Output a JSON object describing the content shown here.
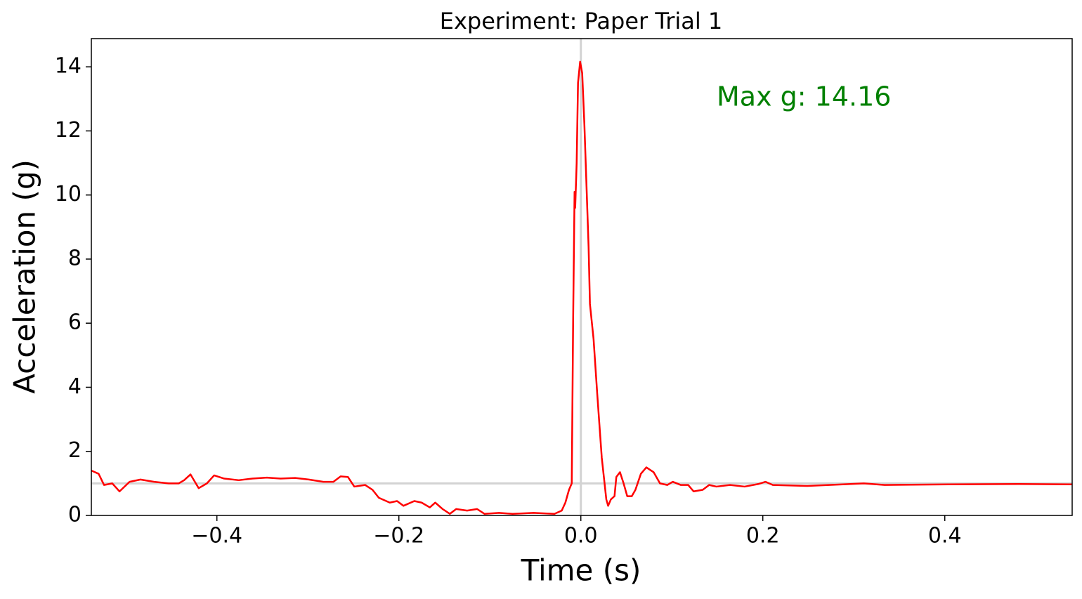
{
  "chart_data": {
    "type": "line",
    "title": "Experiment: Paper Trial 1",
    "xlabel": "Time (s)",
    "ylabel": "Acceleration (g)",
    "annotation": {
      "text": "Max g: 14.16",
      "color": "#008000"
    },
    "color": "#ff0000",
    "reference_lines": {
      "x": 0,
      "y": 1,
      "color": "#d3d3d3"
    },
    "xlim": [
      -0.538,
      0.54
    ],
    "ylim": [
      0,
      14.88
    ],
    "xticks": [
      {
        "value": -0.4,
        "label": "−0.4"
      },
      {
        "value": -0.2,
        "label": "−0.2"
      },
      {
        "value": 0,
        "label": "0.0"
      },
      0.2,
      0.4
    ],
    "yticks": [
      0,
      2,
      4,
      6,
      8,
      10,
      12,
      14
    ],
    "x": [
      -0.538,
      -0.53,
      -0.524,
      -0.515,
      -0.507,
      -0.496,
      -0.484,
      -0.469,
      -0.453,
      -0.442,
      -0.436,
      -0.429,
      -0.42,
      -0.411,
      -0.403,
      -0.392,
      -0.376,
      -0.361,
      -0.345,
      -0.33,
      -0.314,
      -0.299,
      -0.283,
      -0.272,
      -0.264,
      -0.256,
      -0.249,
      -0.237,
      -0.229,
      -0.222,
      -0.21,
      -0.202,
      -0.195,
      -0.183,
      -0.175,
      -0.166,
      -0.16,
      -0.152,
      -0.144,
      -0.137,
      -0.125,
      -0.114,
      -0.106,
      -0.09,
      -0.075,
      -0.052,
      -0.029,
      -0.021,
      -0.017,
      -0.013,
      -0.01,
      -0.0085,
      -0.0069,
      -0.0062,
      -0.0046,
      -0.0031,
      -0.0008,
      0.0015,
      0.0039,
      0.0085,
      0.01,
      0.014,
      0.018,
      0.023,
      0.028,
      0.03,
      0.033,
      0.037,
      0.039,
      0.043,
      0.047,
      0.051,
      0.056,
      0.06,
      0.066,
      0.072,
      0.08,
      0.087,
      0.095,
      0.101,
      0.11,
      0.118,
      0.124,
      0.134,
      0.141,
      0.149,
      0.164,
      0.18,
      0.195,
      0.203,
      0.211,
      0.249,
      0.288,
      0.311,
      0.334,
      0.404,
      0.481,
      0.54
    ],
    "values": [
      1.4,
      1.3,
      0.95,
      1.0,
      0.75,
      1.05,
      1.12,
      1.05,
      1.0,
      1.0,
      1.1,
      1.28,
      0.85,
      1.0,
      1.25,
      1.15,
      1.1,
      1.15,
      1.18,
      1.15,
      1.17,
      1.12,
      1.05,
      1.05,
      1.22,
      1.2,
      0.9,
      0.95,
      0.8,
      0.55,
      0.4,
      0.45,
      0.3,
      0.45,
      0.4,
      0.25,
      0.4,
      0.2,
      0.05,
      0.2,
      0.15,
      0.2,
      0.05,
      0.08,
      0.05,
      0.08,
      0.05,
      0.15,
      0.4,
      0.8,
      1.0,
      6.0,
      10.1,
      9.6,
      11.0,
      13.5,
      14.16,
      13.8,
      12.2,
      8.4,
      6.6,
      5.5,
      3.8,
      1.8,
      0.5,
      0.3,
      0.5,
      0.6,
      1.2,
      1.35,
      1.0,
      0.6,
      0.6,
      0.8,
      1.3,
      1.5,
      1.35,
      1.0,
      0.95,
      1.05,
      0.95,
      0.95,
      0.75,
      0.8,
      0.95,
      0.9,
      0.95,
      0.9,
      0.98,
      1.05,
      0.95,
      0.92,
      0.97,
      1.0,
      0.95,
      0.97,
      0.98,
      0.97
    ]
  }
}
